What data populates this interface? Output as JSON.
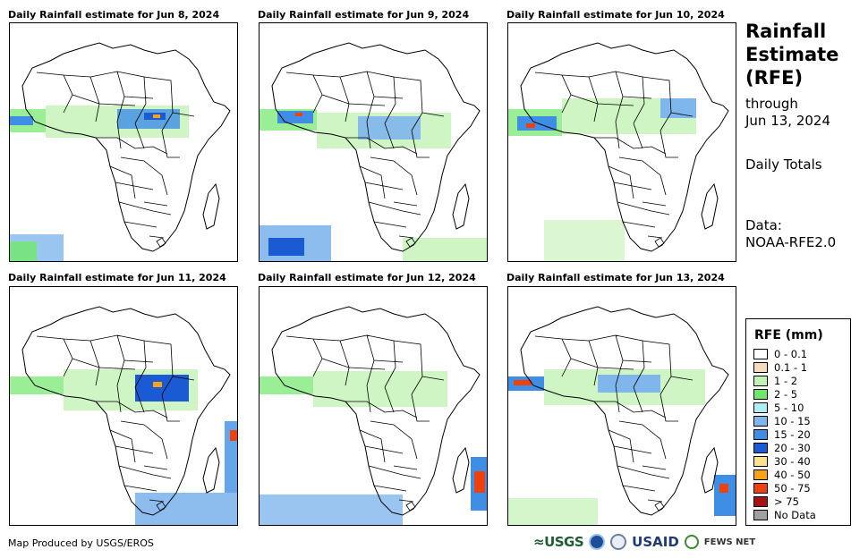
{
  "panels": [
    {
      "title": "Daily Rainfall estimate for Jun 8, 2024"
    },
    {
      "title": "Daily Rainfall estimate for Jun 9, 2024"
    },
    {
      "title": "Daily Rainfall estimate for Jun 10, 2024"
    },
    {
      "title": "Daily Rainfall estimate for Jun 11, 2024"
    },
    {
      "title": "Daily Rainfall estimate for Jun 12, 2024"
    },
    {
      "title": "Daily Rainfall estimate for Jun 13, 2024"
    }
  ],
  "sidebar": {
    "title_line1": "Rainfall",
    "title_line2": "Estimate",
    "title_line3": "(RFE)",
    "through_label": "through",
    "through_date": "Jun 13, 2024",
    "totals_label": "Daily Totals",
    "data_label": "Data:",
    "data_source": "NOAA-RFE2.0"
  },
  "legend": {
    "title": "RFE (mm)",
    "items": [
      {
        "label": "0 - 0.1",
        "color": "#ffffff"
      },
      {
        "label": "0.1 - 1",
        "color": "#f3dcc0"
      },
      {
        "label": "1 - 2",
        "color": "#c2f2b4"
      },
      {
        "label": "2 - 5",
        "color": "#6fe86a"
      },
      {
        "label": "5 - 10",
        "color": "#aeeef2"
      },
      {
        "label": "10 - 15",
        "color": "#7fb6ec"
      },
      {
        "label": "15 - 20",
        "color": "#3f8ee6"
      },
      {
        "label": "20 - 30",
        "color": "#1a5ad2"
      },
      {
        "label": "30 - 40",
        "color": "#fbe28c"
      },
      {
        "label": "40 - 50",
        "color": "#f7a21a"
      },
      {
        "label": "50 - 75",
        "color": "#f0400c"
      },
      {
        "label": "> 75",
        "color": "#a41414"
      },
      {
        "label": "No Data",
        "color": "#a0a0a0"
      }
    ]
  },
  "footer": {
    "credit": "Map Produced by USGS/EROS"
  },
  "logos": {
    "usgs": "≈USGS",
    "usaid": "USAID",
    "fews": "FEWS NET"
  }
}
